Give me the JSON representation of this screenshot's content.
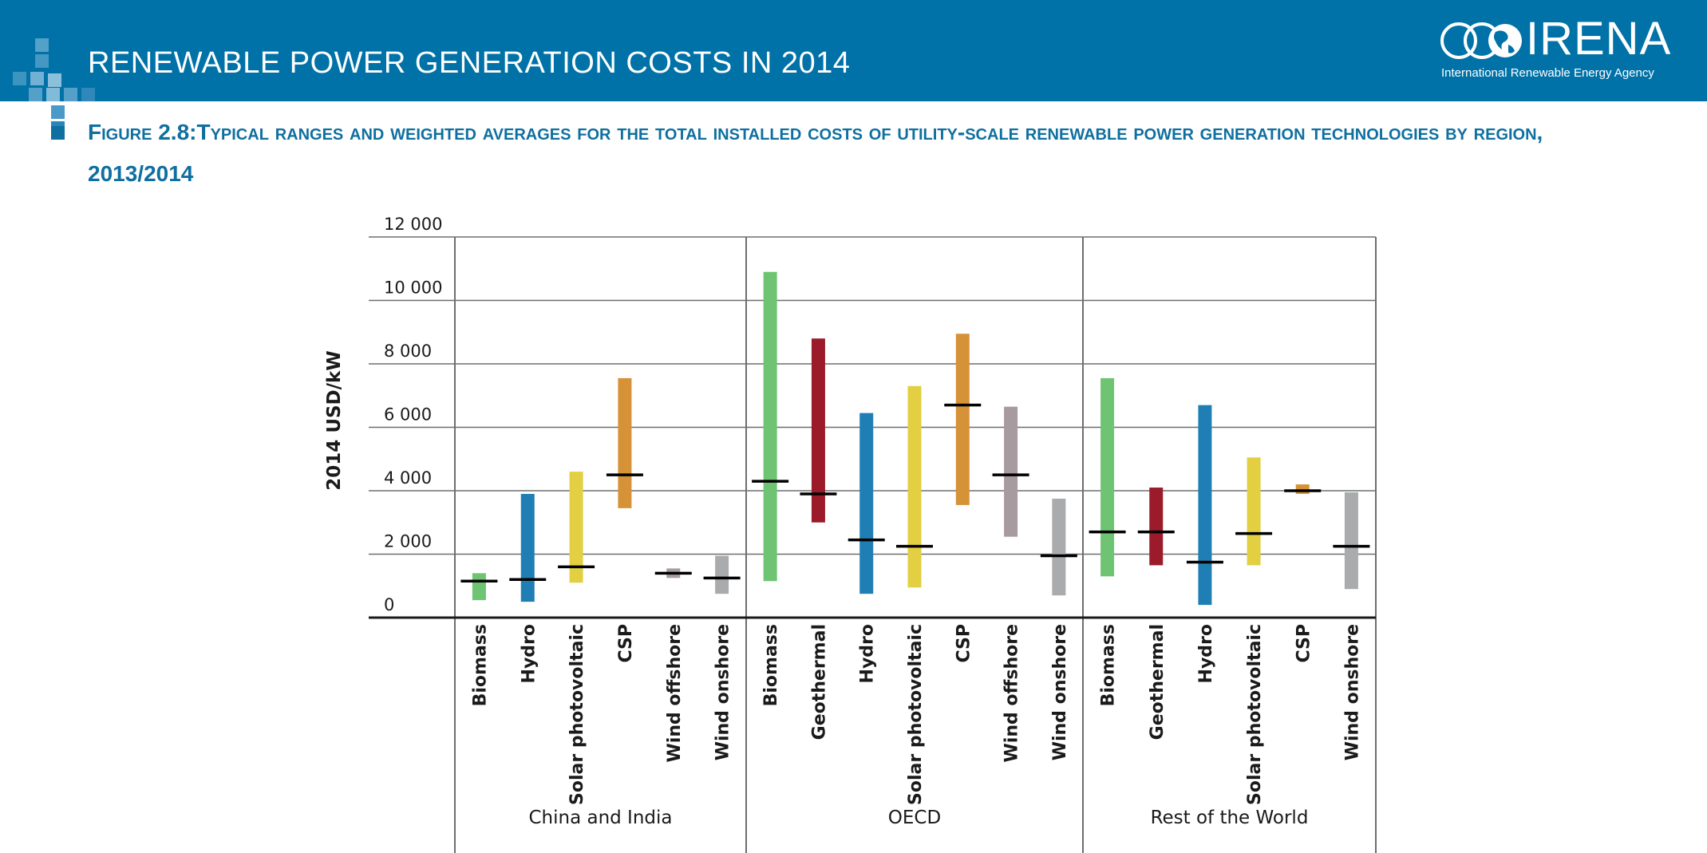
{
  "header": {
    "title": "RENEWABLE POWER GENERATION COSTS IN 2014",
    "logo_text": "IRENA",
    "logo_subtitle": "International Renewable Energy Agency",
    "banner_color": "#0072a7"
  },
  "figure": {
    "title": "Figure 2.8:Typical ranges and weighted averages for the total installed costs of utility-scale renewable power generation technologies by region, 2013/2014"
  },
  "chart_data": {
    "type": "range_bar",
    "ylabel": "2014 USD/kW",
    "ylim": [
      0,
      12000
    ],
    "yticks": [
      0,
      2000,
      4000,
      6000,
      8000,
      10000,
      12000
    ],
    "ytick_labels": [
      "0",
      "2 000",
      "4 000",
      "6 000",
      "8 000",
      "10 000",
      "12 000"
    ],
    "grid": true,
    "colors": {
      "Biomass": "#6ec473",
      "Geothermal": "#9b1b2a",
      "Hydro": "#1f7fb5",
      "Solar photovoltaic": "#e2cf42",
      "CSP": "#d69237",
      "Wind offshore": "#a89ba0",
      "Wind onshore": "#a9abad"
    },
    "groups": [
      {
        "name": "China and India",
        "items": [
          {
            "tech": "Biomass",
            "low": 550,
            "high": 1400,
            "avg": 1150
          },
          {
            "tech": "Hydro",
            "low": 500,
            "high": 3900,
            "avg": 1200
          },
          {
            "tech": "Solar photovoltaic",
            "low": 1100,
            "high": 4600,
            "avg": 1600
          },
          {
            "tech": "CSP",
            "low": 3450,
            "high": 7550,
            "avg": 4500
          },
          {
            "tech": "Wind offshore",
            "low": 1250,
            "high": 1550,
            "avg": 1400
          },
          {
            "tech": "Wind onshore",
            "low": 750,
            "high": 1950,
            "avg": 1250
          }
        ]
      },
      {
        "name": "OECD",
        "items": [
          {
            "tech": "Biomass",
            "low": 1150,
            "high": 10900,
            "avg": 4300
          },
          {
            "tech": "Geothermal",
            "low": 3000,
            "high": 8800,
            "avg": 3900
          },
          {
            "tech": "Hydro",
            "low": 750,
            "high": 6450,
            "avg": 2450
          },
          {
            "tech": "Solar photovoltaic",
            "low": 950,
            "high": 7300,
            "avg": 2250
          },
          {
            "tech": "CSP",
            "low": 3550,
            "high": 8950,
            "avg": 6700
          },
          {
            "tech": "Wind offshore",
            "low": 2550,
            "high": 6650,
            "avg": 4500
          },
          {
            "tech": "Wind onshore",
            "low": 700,
            "high": 3750,
            "avg": 1950
          }
        ]
      },
      {
        "name": "Rest of the World",
        "items": [
          {
            "tech": "Biomass",
            "low": 1300,
            "high": 7550,
            "avg": 2700
          },
          {
            "tech": "Geothermal",
            "low": 1650,
            "high": 4100,
            "avg": 2700
          },
          {
            "tech": "Hydro",
            "low": 400,
            "high": 6700,
            "avg": 1750
          },
          {
            "tech": "Solar photovoltaic",
            "low": 1650,
            "high": 5050,
            "avg": 2650
          },
          {
            "tech": "CSP",
            "low": 3900,
            "high": 4200,
            "avg": 4000
          },
          {
            "tech": "Wind onshore",
            "low": 900,
            "high": 3950,
            "avg": 2250
          }
        ]
      }
    ]
  }
}
